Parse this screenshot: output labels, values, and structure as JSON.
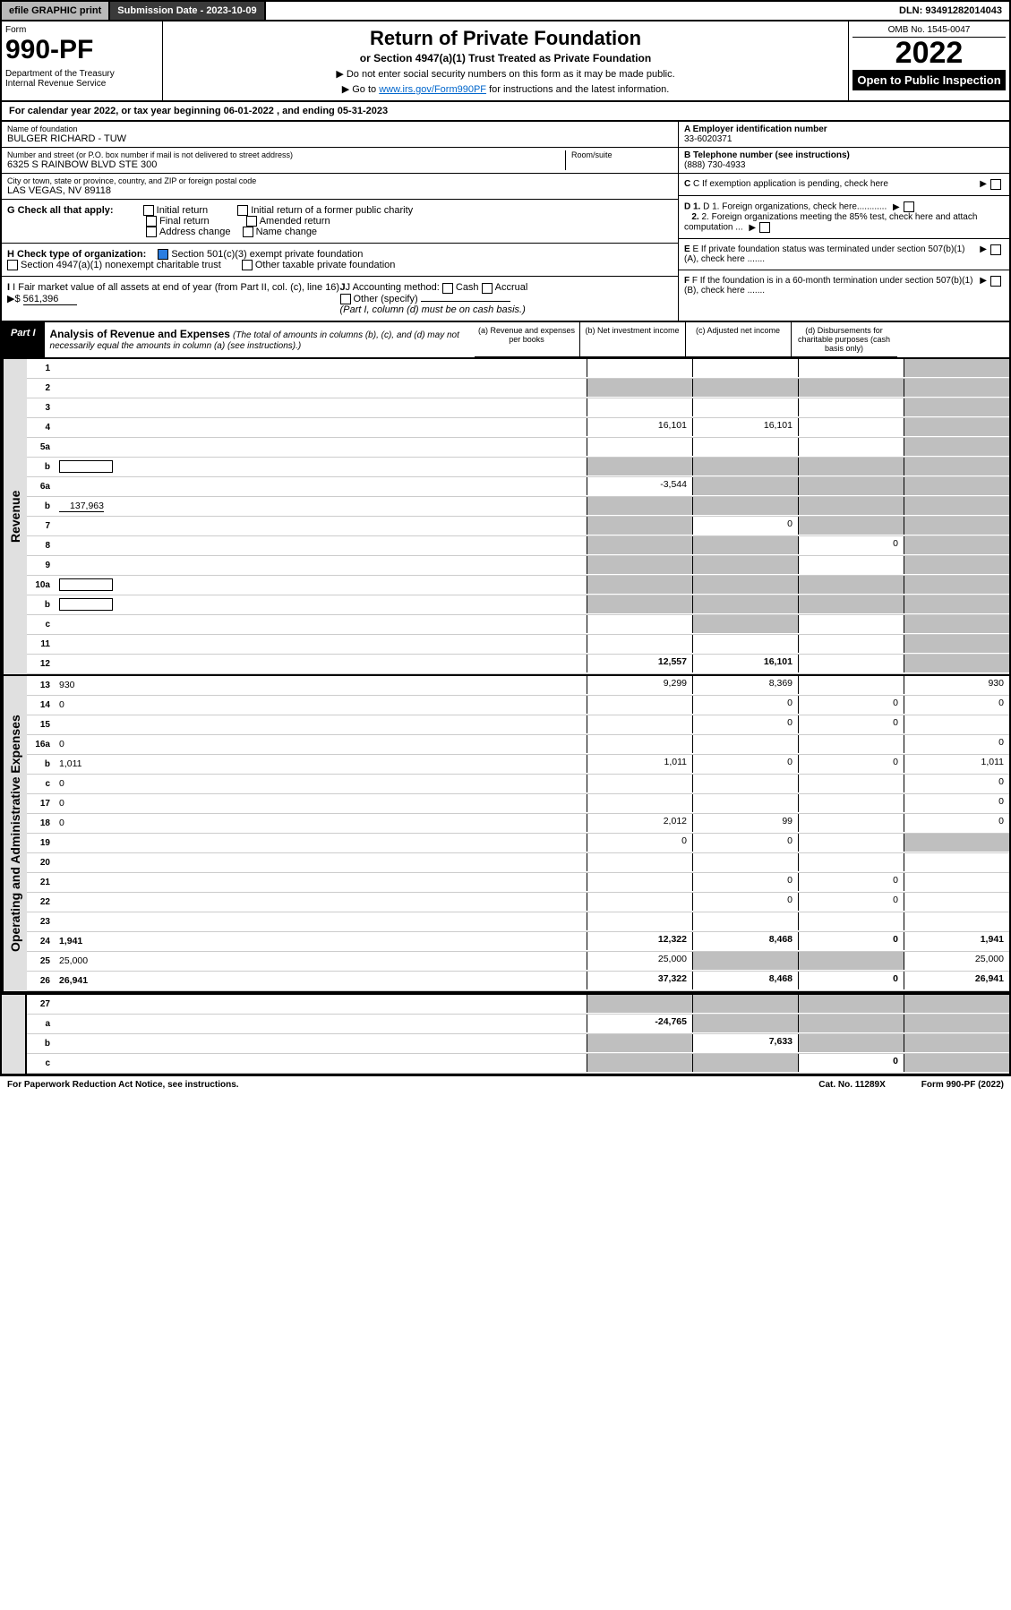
{
  "topbar": {
    "efile": "efile GRAPHIC print",
    "subdate_label": "Submission Date - 2023-10-09",
    "dln": "DLN: 93491282014043"
  },
  "header": {
    "form_label": "Form",
    "form_num": "990-PF",
    "dept": "Department of the Treasury\nInternal Revenue Service",
    "title": "Return of Private Foundation",
    "subtitle": "or Section 4947(a)(1) Trust Treated as Private Foundation",
    "note1": "▶ Do not enter social security numbers on this form as it may be made public.",
    "note2": "▶ Go to www.irs.gov/Form990PF for instructions and the latest information.",
    "omb": "OMB No. 1545-0047",
    "year": "2022",
    "open_pub": "Open to Public Inspection"
  },
  "cal_year": "For calendar year 2022, or tax year beginning 06-01-2022 , and ending 05-31-2023",
  "info": {
    "name_label": "Name of foundation",
    "name": "BULGER RICHARD - TUW",
    "addr_label": "Number and street (or P.O. box number if mail is not delivered to street address)",
    "addr": "6325 S RAINBOW BLVD STE 300",
    "room_label": "Room/suite",
    "city_label": "City or town, state or province, country, and ZIP or foreign postal code",
    "city": "LAS VEGAS, NV  89118",
    "ein_label": "A Employer identification number",
    "ein": "33-6020371",
    "phone_label": "B Telephone number (see instructions)",
    "phone": "(888) 730-4933",
    "c_label": "C If exemption application is pending, check here",
    "d1": "D 1. Foreign organizations, check here............",
    "d2": "2. Foreign organizations meeting the 85% test, check here and attach computation ...",
    "e_label": "E If private foundation status was terminated under section 507(b)(1)(A), check here .......",
    "f_label": "F If the foundation is in a 60-month termination under section 507(b)(1)(B), check here ......."
  },
  "g": {
    "label": "G Check all that apply:",
    "opts": [
      "Initial return",
      "Final return",
      "Address change",
      "Initial return of a former public charity",
      "Amended return",
      "Name change"
    ]
  },
  "h": {
    "label": "H Check type of organization:",
    "opt1": "Section 501(c)(3) exempt private foundation",
    "opt2": "Section 4947(a)(1) nonexempt charitable trust",
    "opt3": "Other taxable private foundation"
  },
  "i": {
    "label": "I Fair market value of all assets at end of year (from Part II, col. (c), line 16)",
    "value": "561,396",
    "j_label": "J Accounting method:",
    "j_opts": [
      "Cash",
      "Accrual"
    ],
    "j_other": "Other (specify)",
    "j_note": "(Part I, column (d) must be on cash basis.)"
  },
  "part1": {
    "tag": "Part I",
    "title": "Analysis of Revenue and Expenses",
    "note": "(The total of amounts in columns (b), (c), and (d) may not necessarily equal the amounts in column (a) (see instructions).)",
    "cols": {
      "a": "(a) Revenue and expenses per books",
      "b": "(b) Net investment income",
      "c": "(c) Adjusted net income",
      "d": "(d) Disbursements for charitable purposes (cash basis only)"
    }
  },
  "side_labels": {
    "rev": "Revenue",
    "exp": "Operating and Administrative Expenses"
  },
  "rows": [
    {
      "n": "1",
      "d": "",
      "a": "",
      "b": "",
      "c": "",
      "shade_d": true
    },
    {
      "n": "2",
      "d": "",
      "a": "",
      "b": "",
      "c": "",
      "shade_all": true
    },
    {
      "n": "3",
      "d": "",
      "a": "",
      "b": "",
      "c": "",
      "shade_d": true
    },
    {
      "n": "4",
      "d": "",
      "a": "16,101",
      "b": "16,101",
      "c": "",
      "shade_d": true
    },
    {
      "n": "5a",
      "d": "",
      "a": "",
      "b": "",
      "c": "",
      "shade_d": true
    },
    {
      "n": "b",
      "d": "",
      "a": "",
      "b": "",
      "c": "",
      "shade_all": true,
      "inline_box": true
    },
    {
      "n": "6a",
      "d": "",
      "a": "-3,544",
      "b": "",
      "c": "",
      "shade_bcd": true
    },
    {
      "n": "b",
      "d": "",
      "a": "",
      "b": "",
      "c": "",
      "shade_all": true,
      "inline_val": "137,963"
    },
    {
      "n": "7",
      "d": "",
      "a": "",
      "b": "0",
      "c": "",
      "shade_a": true,
      "shade_cd": true
    },
    {
      "n": "8",
      "d": "",
      "a": "",
      "b": "",
      "c": "0",
      "shade_ab": true,
      "shade_d": true
    },
    {
      "n": "9",
      "d": "",
      "a": "",
      "b": "",
      "c": "",
      "shade_ab": true,
      "shade_d": true
    },
    {
      "n": "10a",
      "d": "",
      "a": "",
      "b": "",
      "c": "",
      "shade_all": true,
      "inline_box": true
    },
    {
      "n": "b",
      "d": "",
      "a": "",
      "b": "",
      "c": "",
      "shade_all": true,
      "inline_box": true
    },
    {
      "n": "c",
      "d": "",
      "a": "",
      "b": "",
      "c": "",
      "shade_b": true,
      "shade_d": true
    },
    {
      "n": "11",
      "d": "",
      "a": "",
      "b": "",
      "c": "",
      "shade_d": true
    },
    {
      "n": "12",
      "d": "",
      "a": "12,557",
      "b": "16,101",
      "c": "",
      "bold": true,
      "shade_d": true
    }
  ],
  "exp_rows": [
    {
      "n": "13",
      "d": "930",
      "a": "9,299",
      "b": "8,369",
      "c": ""
    },
    {
      "n": "14",
      "d": "0",
      "a": "",
      "b": "0",
      "c": "0"
    },
    {
      "n": "15",
      "d": "",
      "a": "",
      "b": "0",
      "c": "0"
    },
    {
      "n": "16a",
      "d": "0",
      "a": "",
      "b": "",
      "c": ""
    },
    {
      "n": "b",
      "d": "1,011",
      "a": "1,011",
      "b": "0",
      "c": "0"
    },
    {
      "n": "c",
      "d": "0",
      "a": "",
      "b": "",
      "c": ""
    },
    {
      "n": "17",
      "d": "0",
      "a": "",
      "b": "",
      "c": ""
    },
    {
      "n": "18",
      "d": "0",
      "a": "2,012",
      "b": "99",
      "c": ""
    },
    {
      "n": "19",
      "d": "",
      "a": "0",
      "b": "0",
      "c": "",
      "shade_d": true
    },
    {
      "n": "20",
      "d": "",
      "a": "",
      "b": "",
      "c": ""
    },
    {
      "n": "21",
      "d": "",
      "a": "",
      "b": "0",
      "c": "0"
    },
    {
      "n": "22",
      "d": "",
      "a": "",
      "b": "0",
      "c": "0"
    },
    {
      "n": "23",
      "d": "",
      "a": "",
      "b": "",
      "c": ""
    },
    {
      "n": "24",
      "d": "1,941",
      "a": "12,322",
      "b": "8,468",
      "c": "0",
      "bold": true
    },
    {
      "n": "25",
      "d": "25,000",
      "a": "25,000",
      "b": "",
      "c": "",
      "shade_bc": true
    },
    {
      "n": "26",
      "d": "26,941",
      "a": "37,322",
      "b": "8,468",
      "c": "0",
      "bold": true
    }
  ],
  "bottom_rows": [
    {
      "n": "27",
      "d": "",
      "a": "",
      "b": "",
      "c": "",
      "shade_all": true
    },
    {
      "n": "a",
      "d": "",
      "a": "-24,765",
      "b": "",
      "c": "",
      "bold": true,
      "shade_bcd": true
    },
    {
      "n": "b",
      "d": "",
      "a": "",
      "b": "7,633",
      "c": "",
      "bold": true,
      "shade_a": true,
      "shade_cd": true
    },
    {
      "n": "c",
      "d": "",
      "a": "",
      "b": "",
      "c": "0",
      "bold": true,
      "shade_ab": true,
      "shade_d": true
    }
  ],
  "footer": {
    "left": "For Paperwork Reduction Act Notice, see instructions.",
    "mid": "Cat. No. 11289X",
    "right": "Form 990-PF (2022)"
  }
}
